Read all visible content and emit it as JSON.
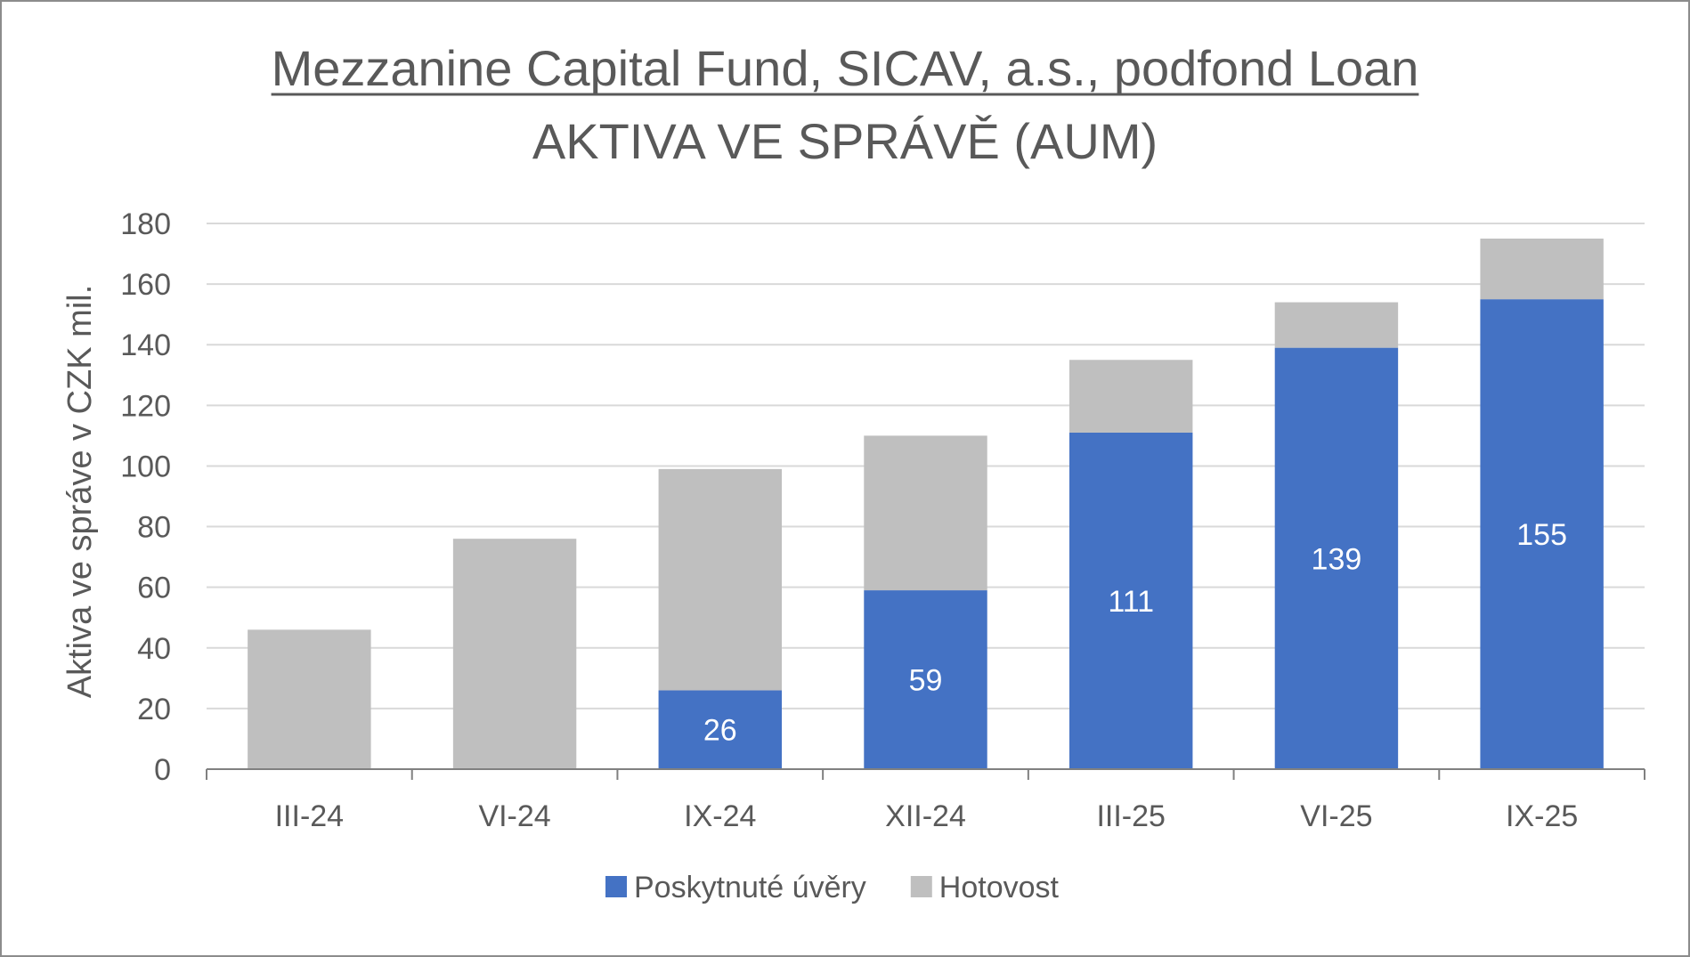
{
  "chart_data": {
    "type": "bar",
    "stacked": true,
    "title": "Mezzanine Capital Fund, SICAV, a.s., podfond Loan",
    "subtitle": "AKTIVA VE SPRÁVĚ (AUM)",
    "xlabel": "",
    "ylabel": "Aktiva ve správe v CZK mil.",
    "ylim": [
      0,
      180
    ],
    "yticks": [
      "0",
      "20",
      "40",
      "60",
      "80",
      "100",
      "120",
      "140",
      "160",
      "180"
    ],
    "categories": [
      "III-24",
      "VI-24",
      "IX-24",
      "XII-24",
      "III-25",
      "VI-25",
      "IX-25"
    ],
    "series": [
      {
        "name": "Poskytnuté úvěry",
        "color": "#4472c4",
        "values": [
          0,
          0,
          26,
          59,
          111,
          139,
          155
        ],
        "labels": [
          "",
          "",
          "26",
          "59",
          "111",
          "139",
          "155"
        ]
      },
      {
        "name": "Hotovost",
        "color": "#bfbfbf",
        "values": [
          46,
          76,
          73,
          51,
          24,
          15,
          20
        ]
      }
    ],
    "grid": true,
    "legend": "bottom"
  }
}
